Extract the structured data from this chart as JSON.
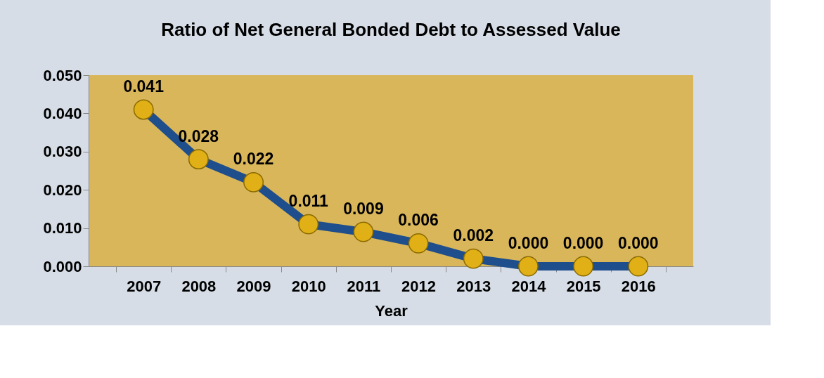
{
  "chart_data": {
    "type": "line",
    "title": "Ratio of Net General Bonded Debt to Assessed Value",
    "xlabel": "Year",
    "categories": [
      "2007",
      "2008",
      "2009",
      "2010",
      "2011",
      "2012",
      "2013",
      "2014",
      "2015",
      "2016"
    ],
    "series": [
      {
        "color": "#1f4e8c",
        "values": [
          0.041,
          0.028,
          0.022,
          0.011,
          0.009,
          0.006,
          0.002,
          0.0,
          0.0,
          0.0
        ],
        "value_labels": [
          "0.041",
          "0.028",
          "0.022",
          "0.011",
          "0.009",
          "0.006",
          "0.002",
          "0.000",
          "0.000",
          "0.000"
        ]
      }
    ],
    "ylim": [
      0,
      0.05
    ],
    "yticks": [
      {
        "value": 0,
        "label": "0.000"
      },
      {
        "value": 0.01,
        "label": "0.010"
      },
      {
        "value": 0.02,
        "label": "0.020"
      },
      {
        "value": 0.03,
        "label": "0.030"
      },
      {
        "value": 0.04,
        "label": "0.040"
      },
      {
        "value": 0.05,
        "label": "0.050"
      }
    ],
    "grid": false,
    "marker": "circle",
    "line_style": "solid"
  }
}
